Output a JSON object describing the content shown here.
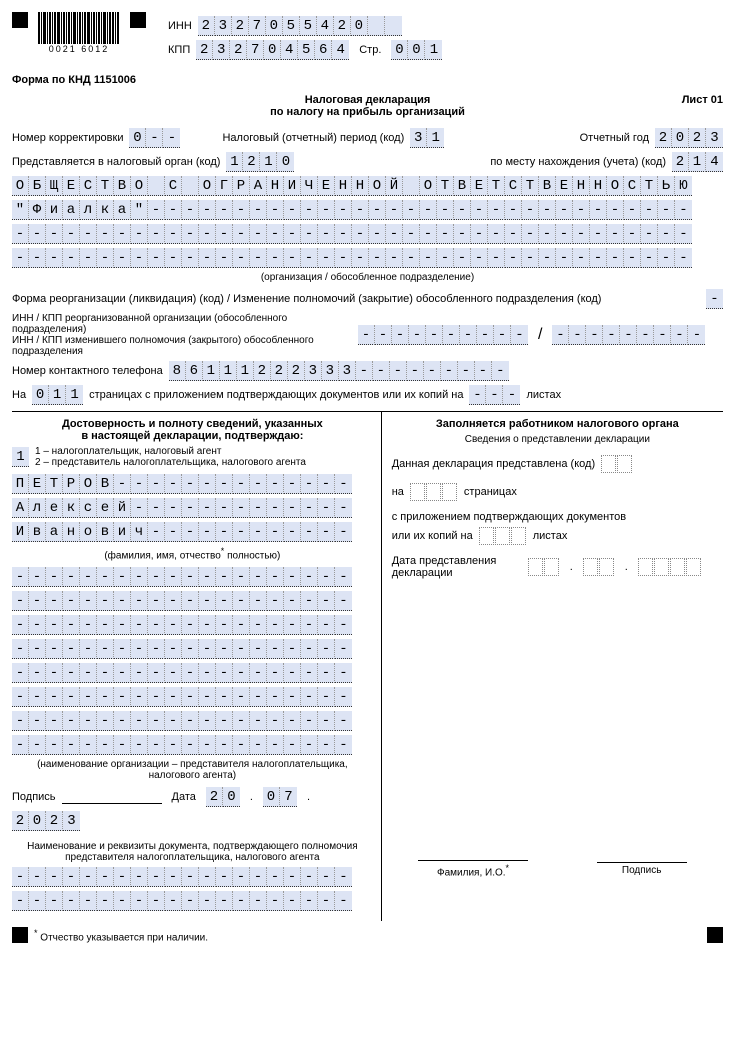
{
  "barcode_label": "0021  6012",
  "header": {
    "inn_label": "ИНН",
    "inn": "2327055420",
    "kpp_label": "КПП",
    "kpp": "232704564",
    "page_label": "Стр.",
    "page": "001"
  },
  "form_code": "Форма по КНД 1151006",
  "title1": "Налоговая декларация",
  "title2": "по налогу на прибыль организаций",
  "sheet": "Лист 01",
  "line_corr": {
    "label": "Номер корректировки",
    "value": "0--"
  },
  "line_period": {
    "label": "Налоговый (отчетный) период (код)",
    "value": "31"
  },
  "line_year": {
    "label": "Отчетный год",
    "value": "2023"
  },
  "line_organ": {
    "label": "Представляется в налоговый орган (код)",
    "value": "1210"
  },
  "line_place": {
    "label": "по месту нахождения (учета) (код)",
    "value": "214"
  },
  "org_rows": [
    "ОБЩЕСТВО С ОГРАНИЧЕННОЙ ОТВЕТСТВЕННОСТЬЮ",
    "\"Фиалка\"--------------------------------",
    "----------------------------------------",
    "----------------------------------------"
  ],
  "org_caption": "(организация / обособленное подразделение)",
  "reorg_label": "Форма реорганизации (ликвидация) (код) / Изменение полномочий (закрытие) обособленного подразделения (код)",
  "reorg_value": "-",
  "reorg_inn_kpp_label1": "ИНН / КПП реорганизованной организации (обособленного подразделения)",
  "reorg_inn_kpp_label2": "ИНН / КПП изменившего полномочия (закрытого) обособленного подразделения",
  "reorg_inn": "----------",
  "reorg_kpp": "---------",
  "phone_label": "Номер контактного телефона",
  "phone": "86111222333---------",
  "pages_prefix": "На",
  "pages_value": "011",
  "pages_mid": "страницах с приложением подтверждающих документов или их копий на",
  "pages_att": "---",
  "pages_suffix": "листах",
  "left": {
    "heading1": "Достоверность и полноту сведений, указанных",
    "heading2": "в настоящей декларации, подтверждаю:",
    "opt1": "1 – налогоплательщик, налоговый агент",
    "opt2": "2 – представитель налогоплательщика, налогового агента",
    "who": "1",
    "name_rows": [
      "ПЕТРОВ--------------",
      "Алексей-------------",
      "Иванович------------"
    ],
    "fio_caption": "(фамилия, имя, отчество",
    "fio_caption2": " полностью)",
    "repr_rows": [
      "--------------------",
      "--------------------",
      "--------------------",
      "--------------------",
      "--------------------",
      "--------------------",
      "--------------------",
      "--------------------"
    ],
    "repr_caption": "(наименование организации – представителя налогоплательщика, налогового агента)",
    "sign_label": "Подпись",
    "date_label": "Дата",
    "date_d": "20",
    "date_m": "07",
    "date_y": "2023",
    "doc_caption": "Наименование и реквизиты документа, подтверждающего полномочия представителя налогоплательщика, налогового агента",
    "doc_rows": [
      "--------------------",
      "--------------------"
    ]
  },
  "right": {
    "heading": "Заполняется работником налогового органа",
    "sub": "Сведения о представлении декларации",
    "l1": "Данная декларация представлена  (код)",
    "l2a": "на",
    "l2b": "страницах",
    "l3": "с приложением подтверждающих документов",
    "l4a": "или их копий на",
    "l4b": "листах",
    "l5": "Дата представления декларации",
    "fio": "Фамилия, И.О.",
    "sign": "Подпись"
  },
  "footnote": "Отчество указывается при наличии.",
  "cell_bg": "#dde4f4",
  "widths": {
    "org_row": 40,
    "name_row": 20,
    "inn": 10,
    "kpp": 9
  }
}
